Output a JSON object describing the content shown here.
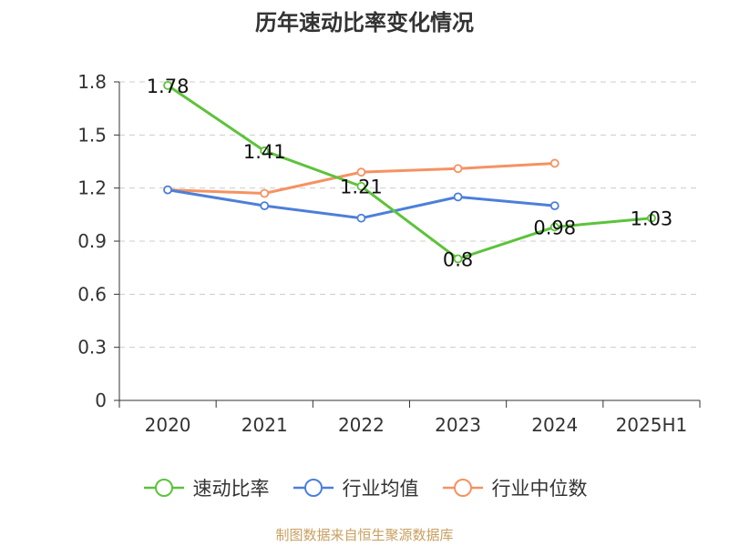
{
  "title": "历年速动比率变化情况",
  "source": "制图数据来自恒生聚源数据库",
  "colors": {
    "grid": "#cccccc",
    "axis": "#333333",
    "text": "#333333",
    "source": "#c8a060"
  },
  "chart_data": {
    "type": "line",
    "categories": [
      "2020",
      "2021",
      "2022",
      "2023",
      "2024",
      "2025H1"
    ],
    "ylim": [
      0,
      1.8
    ],
    "yticks": [
      "0",
      "0.3",
      "0.6",
      "0.9",
      "1.2",
      "1.5",
      "1.8"
    ],
    "grid": true,
    "legend_position": "bottom",
    "series": [
      {
        "name": "速动比率",
        "color": "#5cc33a",
        "values": [
          1.78,
          1.41,
          1.21,
          0.8,
          0.98,
          1.03
        ],
        "labels": [
          "1.78",
          "1.41",
          "1.21",
          "0.8",
          "0.98",
          "1.03"
        ],
        "show_labels": true
      },
      {
        "name": "行业均值",
        "color": "#4c7fd9",
        "values": [
          1.19,
          1.1,
          1.03,
          1.15,
          1.1,
          null
        ],
        "show_labels": false
      },
      {
        "name": "行业中位数",
        "color": "#f59262",
        "values": [
          1.19,
          1.17,
          1.29,
          1.31,
          1.34,
          null
        ],
        "show_labels": false
      }
    ]
  }
}
